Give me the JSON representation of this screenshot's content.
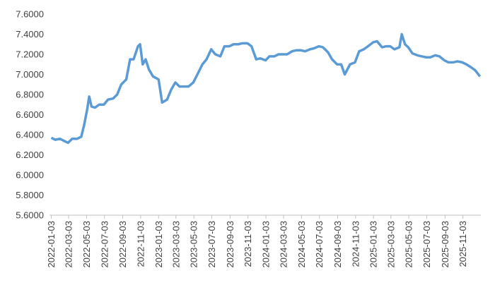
{
  "chart_data": {
    "type": "line",
    "x": [
      "2022-01-03",
      "2022-01-17",
      "2022-02-01",
      "2022-02-15",
      "2022-03-01",
      "2022-03-15",
      "2022-04-01",
      "2022-04-15",
      "2022-04-25",
      "2022-05-05",
      "2022-05-12",
      "2022-05-20",
      "2022-06-01",
      "2022-06-15",
      "2022-07-01",
      "2022-07-15",
      "2022-08-01",
      "2022-08-15",
      "2022-08-29",
      "2022-09-15",
      "2022-09-28",
      "2022-10-10",
      "2022-10-25",
      "2022-11-01",
      "2022-11-10",
      "2022-11-20",
      "2022-12-01",
      "2022-12-15",
      "2023-01-03",
      "2023-01-15",
      "2023-02-01",
      "2023-02-15",
      "2023-03-01",
      "2023-03-15",
      "2023-04-01",
      "2023-04-15",
      "2023-05-01",
      "2023-05-15",
      "2023-06-01",
      "2023-06-15",
      "2023-07-01",
      "2023-07-15",
      "2023-08-01",
      "2023-08-15",
      "2023-09-01",
      "2023-09-15",
      "2023-10-01",
      "2023-10-15",
      "2023-11-01",
      "2023-11-15",
      "2023-12-01",
      "2023-12-15",
      "2024-01-02",
      "2024-01-15",
      "2024-02-01",
      "2024-02-15",
      "2024-03-01",
      "2024-03-15",
      "2024-04-01",
      "2024-04-15",
      "2024-05-01",
      "2024-05-15",
      "2024-06-01",
      "2024-06-15",
      "2024-07-01",
      "2024-07-15",
      "2024-08-01",
      "2024-08-15",
      "2024-09-01",
      "2024-09-15",
      "2024-09-27",
      "2024-10-15",
      "2024-11-01",
      "2024-11-15",
      "2024-12-01",
      "2024-12-15",
      "2025-01-02",
      "2025-01-15",
      "2025-02-01",
      "2025-02-15",
      "2025-03-01",
      "2025-03-15",
      "2025-04-01",
      "2025-04-09",
      "2025-04-20",
      "2025-05-01",
      "2025-05-15",
      "2025-06-01",
      "2025-06-15",
      "2025-07-01",
      "2025-07-15",
      "2025-08-01",
      "2025-08-15",
      "2025-09-01",
      "2025-09-15",
      "2025-10-01",
      "2025-10-15",
      "2025-11-01",
      "2025-11-15",
      "2025-12-01",
      "2025-12-15",
      "2025-12-31"
    ],
    "series": [
      {
        "color": "#5b9bd5",
        "values": [
          6.37,
          6.35,
          6.36,
          6.34,
          6.32,
          6.36,
          6.36,
          6.38,
          6.5,
          6.65,
          6.78,
          6.68,
          6.67,
          6.7,
          6.7,
          6.75,
          6.76,
          6.8,
          6.9,
          6.95,
          7.15,
          7.15,
          7.28,
          7.3,
          7.1,
          7.15,
          7.05,
          6.98,
          6.95,
          6.72,
          6.75,
          6.85,
          6.92,
          6.88,
          6.88,
          6.88,
          6.92,
          7.0,
          7.1,
          7.15,
          7.25,
          7.2,
          7.18,
          7.28,
          7.28,
          7.3,
          7.3,
          7.31,
          7.31,
          7.28,
          7.15,
          7.16,
          7.14,
          7.18,
          7.18,
          7.2,
          7.2,
          7.2,
          7.23,
          7.24,
          7.24,
          7.23,
          7.25,
          7.26,
          7.28,
          7.27,
          7.22,
          7.15,
          7.1,
          7.1,
          7.0,
          7.1,
          7.12,
          7.23,
          7.25,
          7.28,
          7.32,
          7.33,
          7.27,
          7.28,
          7.28,
          7.25,
          7.27,
          7.4,
          7.3,
          7.27,
          7.21,
          7.19,
          7.18,
          7.17,
          7.17,
          7.19,
          7.18,
          7.14,
          7.12,
          7.12,
          7.13,
          7.12,
          7.1,
          7.07,
          7.04,
          6.98
        ]
      }
    ],
    "xlim": [
      "2021-12-28",
      "2026-01-03"
    ],
    "xticks": [
      "2022-01-03",
      "2022-03-03",
      "2022-05-03",
      "2022-07-03",
      "2022-09-03",
      "2022-11-03",
      "2023-01-03",
      "2023-03-03",
      "2023-05-03",
      "2023-07-03",
      "2023-09-03",
      "2023-11-03",
      "2024-01-03",
      "2024-03-03",
      "2024-05-03",
      "2024-07-03",
      "2024-09-03",
      "2024-11-03",
      "2025-01-03",
      "2025-03-03",
      "2025-05-03",
      "2025-07-03",
      "2025-09-03",
      "2025-11-03"
    ],
    "ylim": [
      5.6,
      7.6
    ],
    "yticks": [
      {
        "value": 5.6,
        "label": "5.6000"
      },
      {
        "value": 5.8,
        "label": "5.8000"
      },
      {
        "value": 6.0,
        "label": "6.0000"
      },
      {
        "value": 6.2,
        "label": "6.2000"
      },
      {
        "value": 6.4,
        "label": "6.4000"
      },
      {
        "value": 6.6,
        "label": "6.6000"
      },
      {
        "value": 6.8,
        "label": "6.8000"
      },
      {
        "value": 7.0,
        "label": "7.0000"
      },
      {
        "value": 7.2,
        "label": "7.2000"
      },
      {
        "value": 7.4,
        "label": "7.4000"
      },
      {
        "value": 7.6,
        "label": "7.6000"
      }
    ],
    "grid": false
  }
}
